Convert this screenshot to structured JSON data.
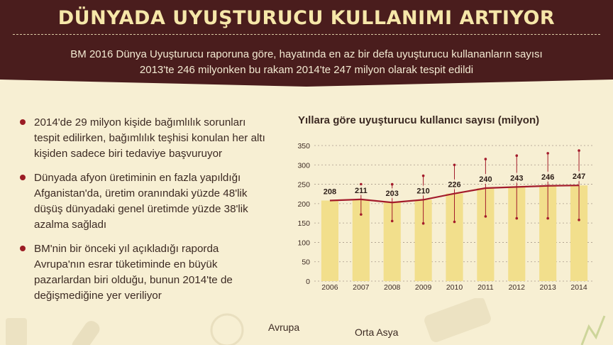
{
  "header": {
    "title": "DÜNYADA UYUŞTURUCU KULLANIMI ARTIYOR",
    "subtitle_line1": "BM 2016 Dünya Uyuşturucu raporuna göre, hayatında en az bir defa uyuşturucu kullananların sayısı",
    "subtitle_line2": "2013'te 246 milyonken bu rakam 2014'te 247 milyon olarak tespit edildi"
  },
  "bullets": [
    {
      "text": "2014'de 29 milyon kişide bağımlılık sorunları tespit edilirken, bağımlılık teşhisi konulan her altı kişiden sadece biri tedaviye başvuruyor"
    },
    {
      "text": "Dünyada afyon üretiminin en fazla yapıldığı Afganistan'da, üretim oranındaki yüzde 48'lik düşüş dünyadaki genel üretimde yüzde 38'lik azalma sağladı"
    },
    {
      "text": "BM'nin bir önceki yıl açıkladığı raporda Avrupa'nın esrar tüketiminde en büyük pazarlardan biri olduğu, bunun 2014'te de değişmediğine yer veriliyor"
    }
  ],
  "map_labels": {
    "avrupa": "Avrupa",
    "orta_asya": "Orta Asya"
  },
  "colors": {
    "header": "#4a1d1d",
    "bar": "#f2df8c",
    "line": "#a31b2b",
    "accent": "#9b1c24"
  },
  "chart_data": {
    "type": "bar",
    "title": "Yıllara göre uyuşturucu kullanıcı sayısı (milyon)",
    "categories": [
      "2006",
      "2007",
      "2008",
      "2009",
      "2010",
      "2011",
      "2012",
      "2013",
      "2014"
    ],
    "values": [
      208,
      211,
      203,
      210,
      226,
      240,
      243,
      246,
      247
    ],
    "range_low": [
      null,
      172,
      155,
      149,
      153,
      167,
      162,
      162,
      158
    ],
    "range_high": [
      null,
      250,
      250,
      272,
      300,
      315,
      324,
      330,
      337
    ],
    "ylim": [
      0,
      350
    ],
    "yticks": [
      0,
      50,
      100,
      150,
      200,
      250,
      300,
      350
    ],
    "grid": true,
    "line_overlay": true
  }
}
